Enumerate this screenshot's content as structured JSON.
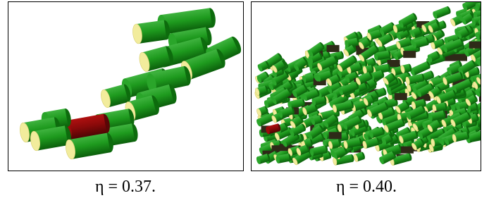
{
  "panels": [
    {
      "caption": "η = 0.37."
    },
    {
      "caption": "η = 0.40."
    }
  ]
}
